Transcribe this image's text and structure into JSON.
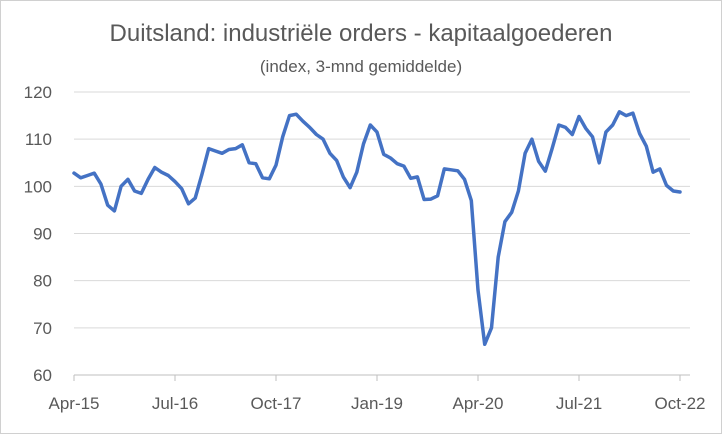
{
  "chart_data": {
    "type": "line",
    "title": "Duitsland: industriële orders - kapitaalgoederen",
    "subtitle": "(index, 3-mnd gemiddelde)",
    "xlabel": "",
    "ylabel": "",
    "ylim": [
      60,
      120
    ],
    "yticks": [
      60,
      70,
      80,
      90,
      100,
      110,
      120
    ],
    "xticks": [
      "Apr-15",
      "Jul-16",
      "Oct-17",
      "Jan-19",
      "Apr-20",
      "Jul-21",
      "Oct-22"
    ],
    "x_start": "Apr-15",
    "x_end": "Oct-22",
    "frequency": "monthly",
    "grid": true,
    "legend": "none",
    "series": [
      {
        "name": "Kapitaalgoederen",
        "color": "#4472C4",
        "values": [
          102.8,
          101.8,
          102.3,
          102.8,
          100.5,
          96,
          94.8,
          100,
          101.5,
          99,
          98.5,
          101.5,
          104,
          103,
          102.3,
          101,
          99.5,
          96.3,
          97.5,
          102.5,
          108,
          107.5,
          107,
          107.8,
          108,
          108.8,
          105,
          104.8,
          101.8,
          101.6,
          104.5,
          110.5,
          115,
          115.3,
          113.8,
          112.5,
          111,
          110,
          107,
          105.5,
          102,
          99.7,
          103,
          109,
          113,
          111.5,
          106.8,
          106,
          104.8,
          104.3,
          101.7,
          102,
          97.2,
          97.3,
          98,
          103.7,
          103.5,
          103.3,
          101.5,
          97,
          78,
          66.5,
          70,
          85,
          92.5,
          94.5,
          99,
          107,
          110,
          105.3,
          103.2,
          108,
          113,
          112.5,
          111,
          114.8,
          112.3,
          110.5,
          105,
          111.5,
          113,
          115.8,
          115,
          115.5,
          111.2,
          108.5,
          103,
          103.7,
          100.2,
          99,
          98.8
        ]
      }
    ]
  }
}
